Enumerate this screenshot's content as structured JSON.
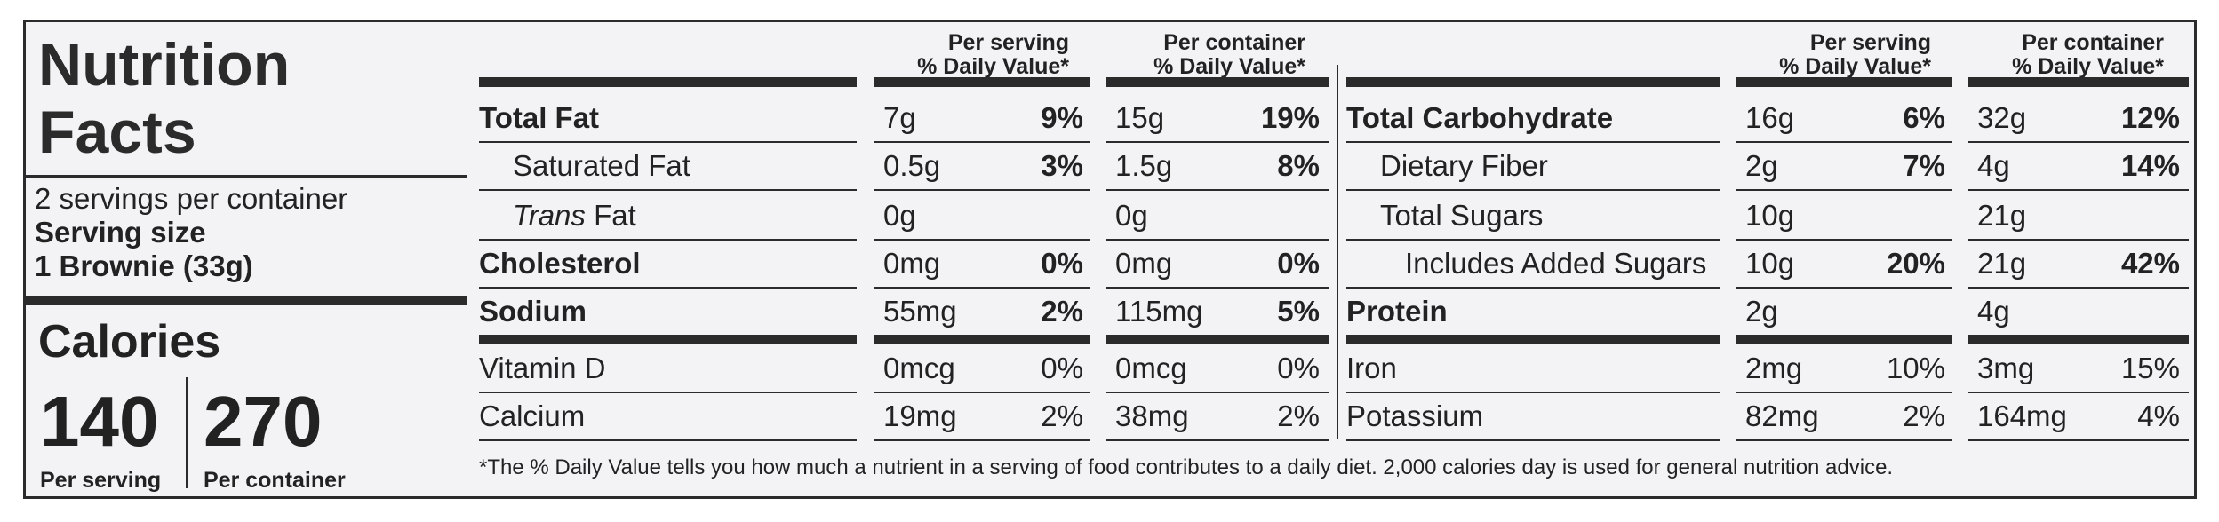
{
  "title_line1": "Nutrition",
  "title_line2": "Facts",
  "servings_per_container": "2 servings per container",
  "serving_size_label": "Serving size",
  "serving_size_value": "1 Brownie (33g)",
  "calories_label": "Calories",
  "calories_per_serving": "140",
  "calories_per_container": "270",
  "per_serving_label": "Per serving",
  "per_container_label": "Per container",
  "header": {
    "per_serving": "Per serving",
    "dv": "% Daily Value*",
    "per_container": "Per container"
  },
  "left_rows": [
    {
      "name": "Total Fat",
      "s_amt": "7g",
      "s_dv": "9%",
      "c_amt": "15g",
      "c_dv": "19%"
    },
    {
      "name": "Saturated Fat",
      "s_amt": "0.5g",
      "s_dv": "3%",
      "c_amt": "1.5g",
      "c_dv": "8%"
    },
    {
      "name_italic": "Trans",
      "name": " Fat",
      "s_amt": "0g",
      "s_dv": "",
      "c_amt": "0g",
      "c_dv": ""
    },
    {
      "name": "Cholesterol",
      "s_amt": "0mg",
      "s_dv": "0%",
      "c_amt": "0mg",
      "c_dv": "0%"
    },
    {
      "name": "Sodium",
      "s_amt": "55mg",
      "s_dv": "2%",
      "c_amt": "115mg",
      "c_dv": "5%"
    },
    {
      "name": "Vitamin D",
      "s_amt": "0mcg",
      "s_dv": "0%",
      "c_amt": "0mcg",
      "c_dv": "0%"
    },
    {
      "name": "Calcium",
      "s_amt": "19mg",
      "s_dv": "2%",
      "c_amt": "38mg",
      "c_dv": "2%"
    }
  ],
  "right_rows": [
    {
      "name": "Total Carbohydrate",
      "s_amt": "16g",
      "s_dv": "6%",
      "c_amt": "32g",
      "c_dv": "12%"
    },
    {
      "name": "Dietary Fiber",
      "s_amt": "2g",
      "s_dv": "7%",
      "c_amt": "4g",
      "c_dv": "14%"
    },
    {
      "name": "Total Sugars",
      "s_amt": "10g",
      "s_dv": "",
      "c_amt": "21g",
      "c_dv": ""
    },
    {
      "name": "Includes Added Sugars",
      "s_amt": "10g",
      "s_dv": "20%",
      "c_amt": "21g",
      "c_dv": "42%"
    },
    {
      "name": "Protein",
      "s_amt": "2g",
      "s_dv": "",
      "c_amt": "4g",
      "c_dv": ""
    },
    {
      "name": "Iron",
      "s_amt": "2mg",
      "s_dv": "10%",
      "c_amt": "3mg",
      "c_dv": "15%"
    },
    {
      "name": "Potassium",
      "s_amt": "82mg",
      "s_dv": "2%",
      "c_amt": "164mg",
      "c_dv": "4%"
    }
  ],
  "footnote": "*The % Daily Value tells you how much a nutrient in a serving of food contributes to a daily diet. 2,000 calories day is used for general nutrition advice."
}
